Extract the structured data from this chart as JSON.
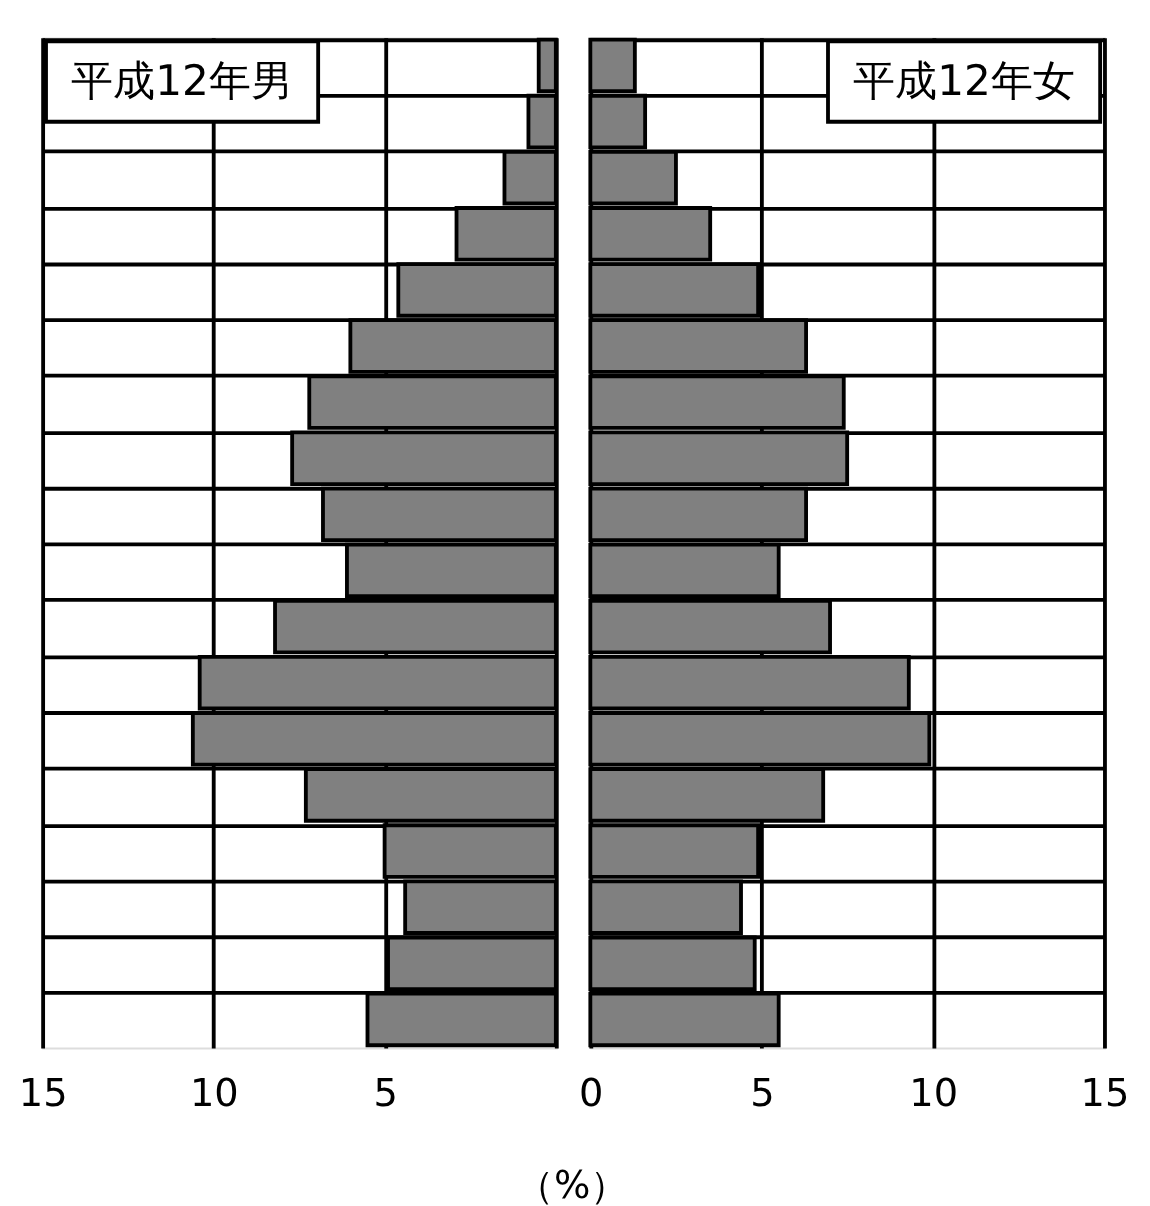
{
  "chart_data": [
    {
      "type": "bar",
      "orientation": "horizontal",
      "title": "平成12年男",
      "categories": [
        null,
        null,
        null,
        null,
        null,
        null,
        null,
        null,
        null,
        null,
        null,
        null,
        null,
        null,
        null,
        null,
        null,
        null
      ],
      "values": [
        0.5,
        0.8,
        1.5,
        2.9,
        4.6,
        6.0,
        7.2,
        7.7,
        6.8,
        6.1,
        8.2,
        10.4,
        10.6,
        7.3,
        5.0,
        4.4,
        4.9,
        5.5
      ],
      "color": "#808080",
      "xlim": [
        15,
        0
      ],
      "xticks": [
        15,
        10,
        5,
        {
          "value": 0,
          "label": null
        }
      ],
      "grid": true,
      "tick_labels": "x"
    },
    {
      "type": "bar",
      "orientation": "horizontal",
      "title": "平成12年女",
      "xlabel": "（%）",
      "categories": [
        null,
        null,
        null,
        null,
        null,
        null,
        null,
        null,
        null,
        null,
        null,
        null,
        null,
        null,
        null,
        null,
        null,
        null
      ],
      "values": [
        1.3,
        1.6,
        2.5,
        3.5,
        4.9,
        6.3,
        7.4,
        7.5,
        6.3,
        5.5,
        7.0,
        9.3,
        9.9,
        6.8,
        4.9,
        4.4,
        4.8,
        5.5
      ],
      "color": "#808080",
      "xlim": [
        0,
        15
      ],
      "xticks": [
        0,
        5,
        10,
        15
      ],
      "grid": true,
      "tick_labels": "x"
    }
  ]
}
